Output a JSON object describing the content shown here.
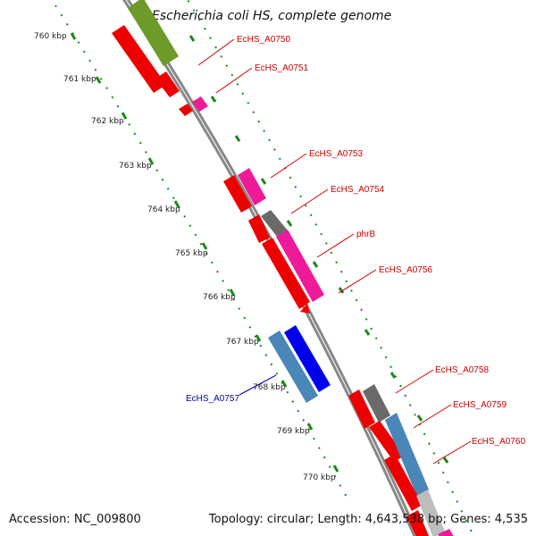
{
  "title": "Escherichia coli HS, complete genome",
  "footer": {
    "accession": "Accession: NC_009800",
    "topology": "Topology: circular; Length: 4,643,538 bp; Genes: 4,535"
  },
  "kbp_ticks": [
    "760 kbp",
    "761 kbp",
    "762 kbp",
    "763 kbp",
    "764 kbp",
    "765 kbp",
    "766 kbp",
    "767 kbp",
    "768 kbp",
    "769 kbp",
    "770 kbp"
  ],
  "gene_labels": [
    "EcHS_A0750",
    "EcHS_A0751",
    "EcHS_A0753",
    "EcHS_A0754",
    "phrB",
    "EcHS_A0756",
    "EcHS_A0757",
    "EcHS_A0758",
    "EcHS_A0759",
    "EcHS_A0760"
  ],
  "colors": {
    "backbone": "#888888",
    "tick_dots": "#1a8a1a",
    "gene_red": "#ee0000",
    "gene_pink": "#ee1a9a",
    "gene_olive": "#6e9a2a",
    "gene_gray": "#6a6a6a",
    "gene_steelblue": "#4a86b8",
    "gene_blue": "#0000ee",
    "gene_lightgray": "#bdbdbd",
    "label_red": "#cc0000",
    "label_blue": "#0000aa"
  }
}
